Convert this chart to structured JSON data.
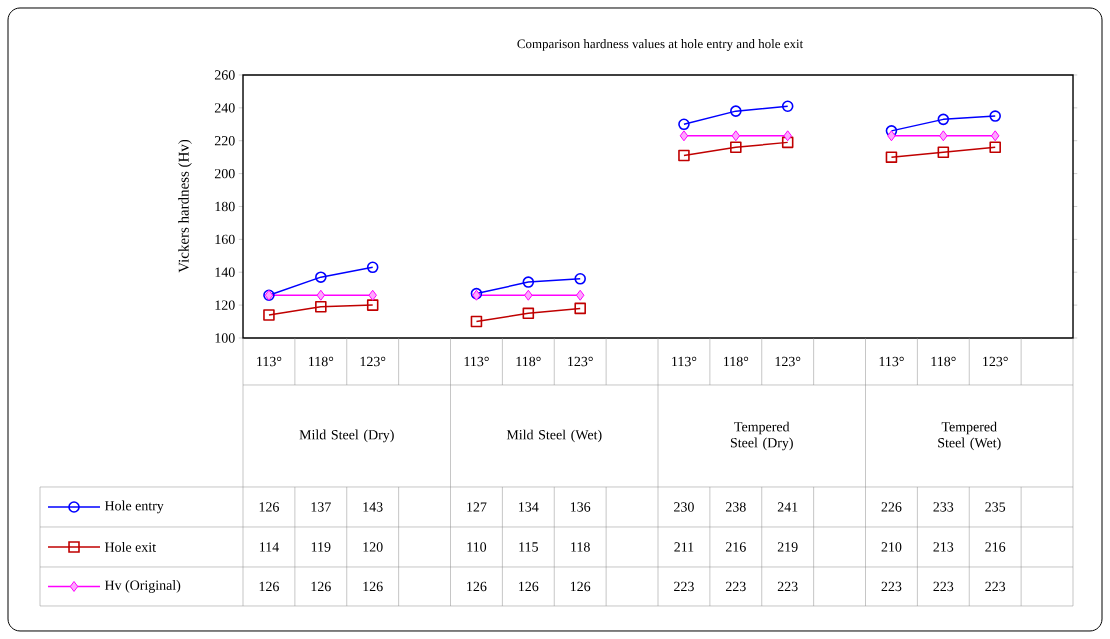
{
  "chart_data": {
    "type": "line",
    "title": "Comparison  hardness values at hole entry and hole exit",
    "ylabel": "Vickers hardness (Hv)",
    "categories": [
      "113°",
      "118°",
      "123°",
      null,
      "113°",
      "118°",
      "123°",
      null,
      "113°",
      "118°",
      "123°",
      null,
      "113°",
      "118°",
      "123°",
      null
    ],
    "annotations": [
      "Mild Steel (Dry)",
      "Mild Steel (Wet)",
      "Tempered Steel (Dry)",
      "Tempered Steel (Wet)"
    ],
    "series": [
      {
        "name": "Hole entry",
        "color": "#0000ff",
        "marker": "circle",
        "values": [
          126,
          137,
          143,
          null,
          127,
          134,
          136,
          null,
          230,
          238,
          241,
          null,
          226,
          233,
          235,
          null
        ]
      },
      {
        "name": "Hole exit",
        "color": "#c00000",
        "marker": "square",
        "values": [
          114,
          119,
          120,
          null,
          110,
          115,
          118,
          null,
          211,
          216,
          219,
          null,
          210,
          213,
          216,
          null
        ]
      },
      {
        "name": "Hv (Original)",
        "color": "#ff00ff",
        "marker": "diamond",
        "values": [
          126,
          126,
          126,
          null,
          126,
          126,
          126,
          null,
          223,
          223,
          223,
          null,
          223,
          223,
          223,
          null
        ]
      }
    ],
    "ylim": [
      100,
      260
    ],
    "yticks": [
      100,
      120,
      140,
      160,
      180,
      200,
      220,
      240,
      260
    ],
    "grid": false,
    "legend": "bottom left",
    "line_style": "solid",
    "data_labels": true
  }
}
